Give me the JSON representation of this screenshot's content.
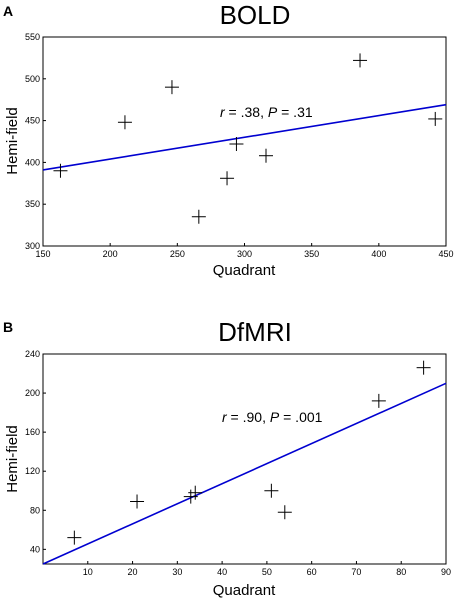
{
  "chart_data": [
    {
      "panel": "A",
      "type": "scatter",
      "title": "BOLD",
      "xlabel": "Quadrant",
      "ylabel": "Hemi-field",
      "xlim": [
        150,
        450
      ],
      "ylim": [
        300,
        550
      ],
      "xticks": [
        150,
        200,
        250,
        300,
        350,
        400,
        450
      ],
      "yticks": [
        300,
        350,
        400,
        450,
        500,
        550
      ],
      "points": [
        {
          "x": 163,
          "y": 390
        },
        {
          "x": 211,
          "y": 448
        },
        {
          "x": 246,
          "y": 490
        },
        {
          "x": 266,
          "y": 335
        },
        {
          "x": 287,
          "y": 381
        },
        {
          "x": 294,
          "y": 422
        },
        {
          "x": 316,
          "y": 408
        },
        {
          "x": 386,
          "y": 522
        },
        {
          "x": 442,
          "y": 452
        }
      ],
      "fit_line": [
        {
          "x": 150,
          "y": 391
        },
        {
          "x": 450,
          "y": 469
        }
      ],
      "annotation": {
        "r_symbol": "r",
        "r_text": " = .38, ",
        "p_symbol": "P",
        "p_text": " = .31"
      },
      "grid": false,
      "marker": "plus",
      "line_color": "#0000d0"
    },
    {
      "panel": "B",
      "type": "scatter",
      "title": "DfMRI",
      "xlabel": "Quadrant",
      "ylabel": "Hemi-field",
      "xlim": [
        0,
        90
      ],
      "ylim": [
        25,
        240
      ],
      "xticks": [
        10,
        20,
        30,
        40,
        50,
        60,
        70,
        80,
        90
      ],
      "yticks": [
        40,
        80,
        120,
        160,
        200,
        240
      ],
      "points": [
        {
          "x": 7,
          "y": 52
        },
        {
          "x": 21,
          "y": 89
        },
        {
          "x": 33,
          "y": 94
        },
        {
          "x": 34,
          "y": 98
        },
        {
          "x": 51,
          "y": 100
        },
        {
          "x": 54,
          "y": 78
        },
        {
          "x": 75,
          "y": 192
        },
        {
          "x": 85,
          "y": 226
        }
      ],
      "fit_line": [
        {
          "x": 0,
          "y": 25
        },
        {
          "x": 90,
          "y": 210
        }
      ],
      "annotation": {
        "r_symbol": "r",
        "r_text": " = .90, ",
        "p_symbol": "P",
        "p_text": " = .001"
      },
      "grid": false,
      "marker": "plus",
      "line_color": "#0000d0"
    }
  ]
}
